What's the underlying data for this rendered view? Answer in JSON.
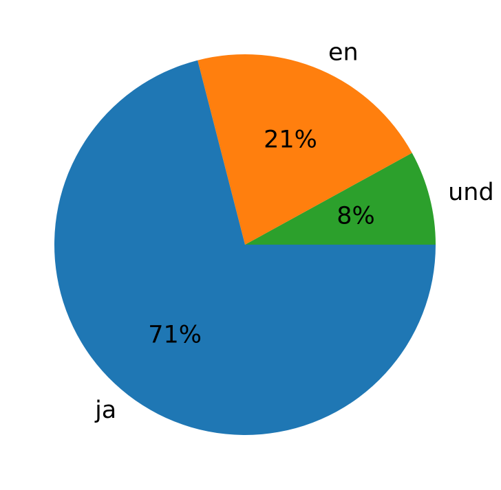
{
  "chart_data": {
    "type": "pie",
    "title": "",
    "start_angle_deg": 0,
    "direction": "counterclockwise",
    "slices": [
      {
        "label": "und",
        "value": 8,
        "pct_label": "8%",
        "color": "#2ca02c"
      },
      {
        "label": "en",
        "value": 21,
        "pct_label": "21%",
        "color": "#ff7f0e"
      },
      {
        "label": "ja",
        "value": 71,
        "pct_label": "71%",
        "color": "#1f77b4"
      }
    ]
  }
}
